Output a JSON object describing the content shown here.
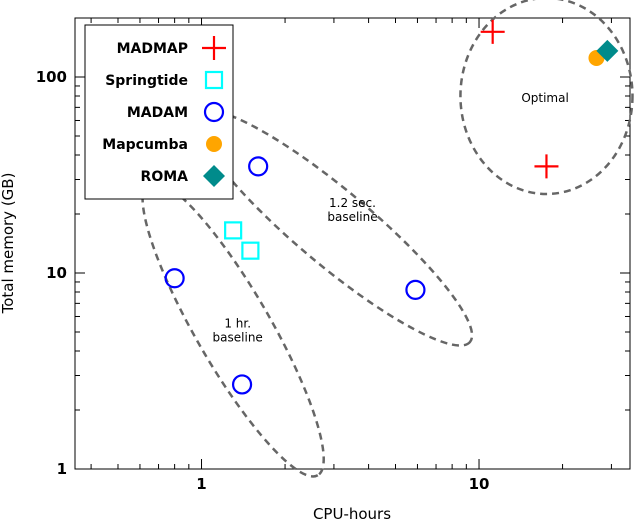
{
  "chart_data": {
    "type": "scatter",
    "xlabel": "CPU-hours",
    "ylabel": "Total memory (GB)",
    "xscale": "log",
    "yscale": "log",
    "xlim": [
      0.35,
      35
    ],
    "ylim": [
      1,
      200
    ],
    "xticks": [
      {
        "value": 1,
        "label": "1"
      },
      {
        "value": 10,
        "label": "10"
      }
    ],
    "yticks": [
      {
        "value": 1,
        "label": "1"
      },
      {
        "value": 10,
        "label": "10"
      },
      {
        "value": 100,
        "label": "100"
      }
    ],
    "grid": false,
    "legend_position": "top-left",
    "series": [
      {
        "name": "MADMAP",
        "marker": "plus",
        "color": "#ff0000",
        "points": [
          [
            11.2,
            170
          ],
          [
            17.5,
            35
          ]
        ]
      },
      {
        "name": "Springtide",
        "marker": "square-open",
        "color": "#00ffff",
        "points": [
          [
            1.3,
            16.5
          ],
          [
            1.5,
            13
          ]
        ]
      },
      {
        "name": "MADAM",
        "marker": "circle-open",
        "color": "#0000ff",
        "points": [
          [
            0.8,
            9.4
          ],
          [
            1.6,
            35
          ],
          [
            1.4,
            2.7
          ],
          [
            5.9,
            8.2
          ]
        ]
      },
      {
        "name": "Mapcumba",
        "marker": "circle-filled",
        "color": "#ffa500",
        "points": [
          [
            26.5,
            125
          ]
        ]
      },
      {
        "name": "ROMA",
        "marker": "diamond-filled",
        "color": "#008b8b",
        "points": [
          [
            29,
            136
          ]
        ]
      }
    ],
    "annotations": [
      {
        "lines": [
          "Optimal"
        ],
        "x": 17.3,
        "y": 78
      },
      {
        "lines": [
          "1.2 sec.",
          "baseline"
        ],
        "x": 3.5,
        "y": 21
      },
      {
        "lines": [
          "1 hr.",
          "baseline"
        ],
        "x": 1.35,
        "y": 5.1
      }
    ],
    "groups": [
      {
        "label": "Optimal",
        "center": [
          17.5,
          80
        ],
        "rx_dec": 0.31,
        "ry_dec": 0.5,
        "rotation": 0
      },
      {
        "label": "1.2 sec. baseline",
        "center": [
          3.0,
          17
        ],
        "rx_dec": 0.64,
        "ry_dec": 0.19,
        "rotation": 40
      },
      {
        "label": "1 hr. baseline",
        "center": [
          1.3,
          5.2
        ],
        "rx_dec": 0.61,
        "ry_dec": 0.19,
        "rotation": 60
      }
    ]
  }
}
